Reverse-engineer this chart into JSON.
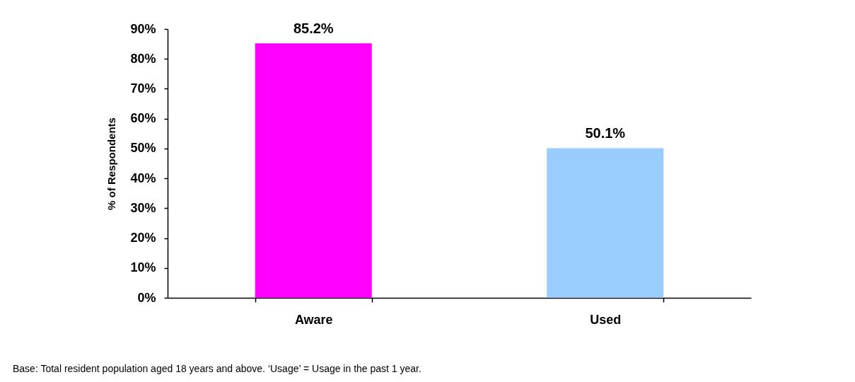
{
  "chart_data": {
    "type": "bar",
    "ylabel": "% of Respondents",
    "categories": [
      "Aware",
      "Used"
    ],
    "values": [
      85.2,
      50.1
    ],
    "colors": [
      "#ff00ff",
      "#99ccff"
    ],
    "value_labels": [
      "85.2%",
      "50.1%"
    ],
    "ylim": [
      0,
      90
    ],
    "yticks": [
      {
        "value": 0,
        "label": "0%"
      },
      {
        "value": 10,
        "label": "10%"
      },
      {
        "value": 20,
        "label": "20%"
      },
      {
        "value": 30,
        "label": "30%"
      },
      {
        "value": 40,
        "label": "40%"
      },
      {
        "value": 50,
        "label": "50%"
      },
      {
        "value": 60,
        "label": "60%"
      },
      {
        "value": 70,
        "label": "70%"
      },
      {
        "value": 80,
        "label": "80%"
      },
      {
        "value": 90,
        "label": "90%"
      }
    ],
    "annotations": [
      "Base: Total resident population aged 18 years and above. ‘Usage’ = Usage in the past 1 year."
    ]
  }
}
